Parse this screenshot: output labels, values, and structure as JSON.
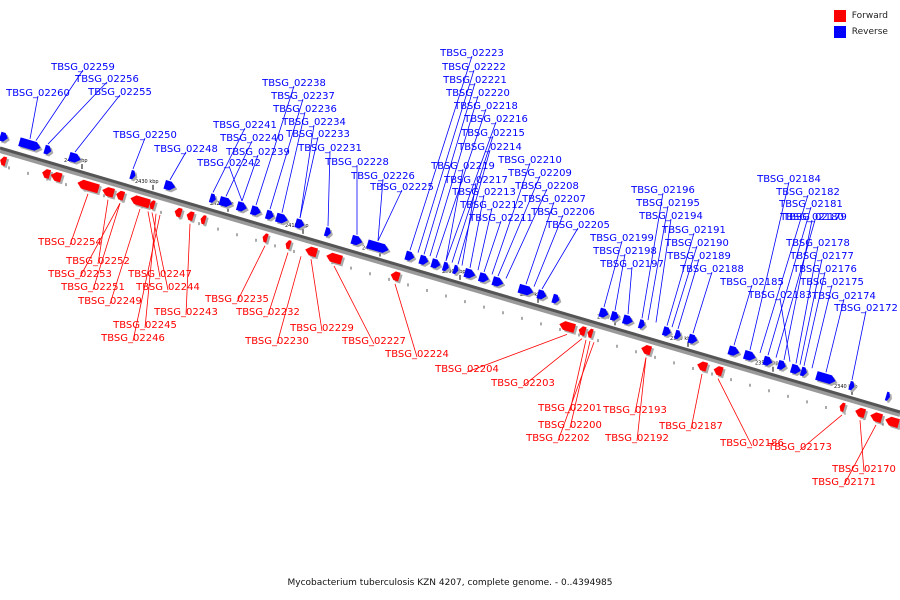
{
  "legend": {
    "forward_label": "Forward",
    "reverse_label": "Reverse",
    "forward_color": "#ff0000",
    "reverse_color": "#0000ff"
  },
  "caption": "Mycobacterium tuberculosis KZN 4207, complete genome. - 0..4394985",
  "axis_ticks": [
    "2440 kbp",
    "2430 kbp",
    "2420 kbp",
    "2410 kbp",
    "2400 kbp",
    "2390 kbp",
    "2380 kbp",
    "2370 kbp",
    "2360 kbp",
    "2350 kbp",
    "2340 kbp"
  ],
  "genes": {
    "reverse": [
      "TBSG_02259",
      "TBSG_02256",
      "TBSG_02260",
      "TBSG_02255",
      "TBSG_02250",
      "TBSG_02248",
      "TBSG_02241",
      "TBSG_02240",
      "TBSG_02242",
      "TBSG_02238",
      "TBSG_02237",
      "TBSG_02236",
      "TBSG_02234",
      "TBSG_02233",
      "TBSG_02239",
      "TBSG_02231",
      "TBSG_02228",
      "TBSG_02226",
      "TBSG_02225",
      "TBSG_02223",
      "TBSG_02222",
      "TBSG_02221",
      "TBSG_02220",
      "TBSG_02218",
      "TBSG_02216",
      "TBSG_02215",
      "TBSG_02214",
      "TBSG_02219",
      "TBSG_02217",
      "TBSG_02213",
      "TBSG_02212",
      "TBSG_02211",
      "TBSG_02210",
      "TBSG_02209",
      "TBSG_02208",
      "TBSG_02207",
      "TBSG_02206",
      "TBSG_02205",
      "TBSG_02199",
      "TBSG_02198",
      "TBSG_02197",
      "TBSG_02196",
      "TBSG_02195",
      "TBSG_02194",
      "TBSG_02191",
      "TBSG_02190",
      "TBSG_02189",
      "TBSG_02188",
      "TBSG_02185",
      "TBSG_02184",
      "TBSG_02182",
      "TBSG_02181",
      "TBSG_02179",
      "TBSG_02180",
      "TBSG_02178",
      "TBSG_02177",
      "TBSG_02176",
      "TBSG_02175",
      "TBSG_02183",
      "TBSG_02174",
      "TBSG_02172"
    ],
    "forward": [
      "TBSG_02254",
      "TBSG_02252",
      "TBSG_02253",
      "TBSG_02251",
      "TBSG_02249",
      "TBSG_02247",
      "TBSG_02244",
      "TBSG_02245",
      "TBSG_02246",
      "TBSG_02243",
      "TBSG_02235",
      "TBSG_02232",
      "TBSG_02230",
      "TBSG_02229",
      "TBSG_02227",
      "TBSG_02224",
      "TBSG_02204",
      "TBSG_02203",
      "TBSG_02201",
      "TBSG_02200",
      "TBSG_02202",
      "TBSG_02193",
      "TBSG_02192",
      "TBSG_02187",
      "TBSG_02186",
      "TBSG_02173",
      "TBSG_02170",
      "TBSG_02171"
    ]
  }
}
